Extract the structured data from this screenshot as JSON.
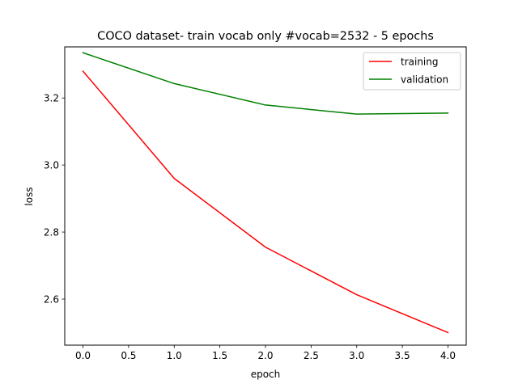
{
  "chart_data": {
    "type": "line",
    "title": "COCO dataset- train vocab only #vocab=2532 - 5 epochs",
    "xlabel": "epoch",
    "ylabel": "loss",
    "x": [
      0,
      1,
      2,
      3,
      4
    ],
    "series": [
      {
        "name": "training",
        "color": "#ff0000",
        "values": [
          3.28,
          2.96,
          2.755,
          2.613,
          2.5
        ]
      },
      {
        "name": "validation",
        "color": "#008000",
        "values": [
          3.335,
          3.243,
          3.179,
          3.152,
          3.155
        ]
      }
    ],
    "xlim": [
      -0.2,
      4.2
    ],
    "ylim": [
      2.4625,
      3.3525
    ],
    "xticks": [
      0.0,
      0.5,
      1.0,
      1.5,
      2.0,
      2.5,
      3.0,
      3.5,
      4.0
    ],
    "xtick_labels": [
      "0.0",
      "0.5",
      "1.0",
      "1.5",
      "2.0",
      "2.5",
      "3.0",
      "3.5",
      "4.0"
    ],
    "yticks": [
      2.6,
      2.8,
      3.0,
      3.2
    ],
    "ytick_labels": [
      "2.6",
      "2.8",
      "3.0",
      "3.2"
    ],
    "grid": false,
    "legend": "top-right"
  }
}
